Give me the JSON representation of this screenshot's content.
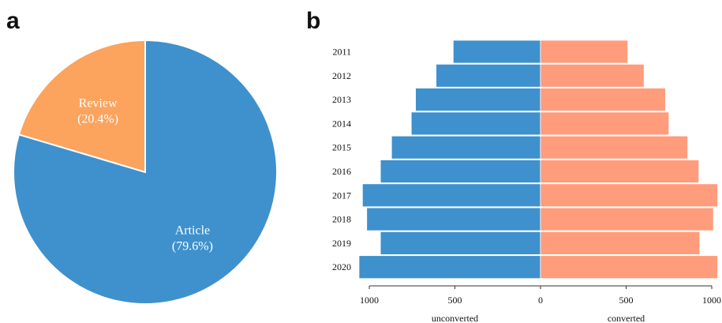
{
  "panels": {
    "a_label": "a",
    "b_label": "b"
  },
  "chart_data": [
    {
      "type": "pie",
      "slices": [
        {
          "label": "Review",
          "percent_label": "(20.4%)",
          "value": 20.4,
          "color": "#fca35d"
        },
        {
          "label": "Article",
          "percent_label": "(79.6%)",
          "value": 79.6,
          "color": "#3e91cc"
        }
      ]
    },
    {
      "type": "bar",
      "orientation": "horizontal-diverging",
      "categories": [
        "2011",
        "2012",
        "2013",
        "2014",
        "2015",
        "2016",
        "2017",
        "2018",
        "2019",
        "2020"
      ],
      "series": [
        {
          "name": "unconverted",
          "color": "#3e91cc",
          "values": [
            510,
            610,
            730,
            755,
            870,
            935,
            1040,
            1015,
            935,
            1060
          ]
        },
        {
          "name": "converted",
          "color": "#fe9c7c",
          "values": [
            510,
            605,
            730,
            750,
            860,
            925,
            1035,
            1010,
            930,
            1035
          ]
        }
      ],
      "xlim": [
        -1000,
        1000
      ],
      "xticks": [
        -1000,
        -500,
        0,
        500,
        1000
      ],
      "xtick_labels": [
        "1000",
        "500",
        "0",
        "500",
        "1000"
      ],
      "xlabel_left": "unconverted",
      "xlabel_right": "converted",
      "grid": false
    }
  ]
}
